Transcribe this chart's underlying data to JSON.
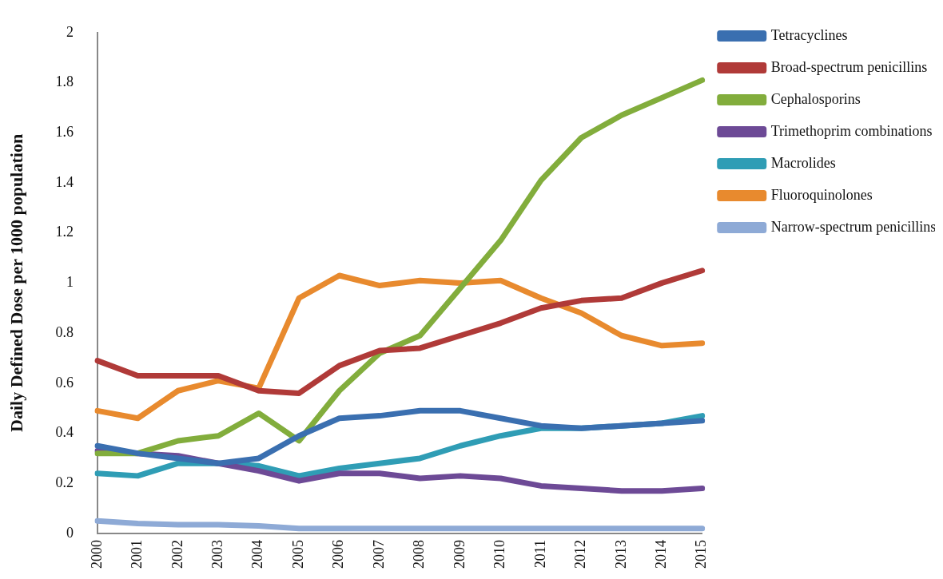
{
  "chart_data": {
    "type": "line",
    "ylabel": "Daily Defined Dose per 1000 population",
    "categories": [
      "2000",
      "2001",
      "2002",
      "2003",
      "2004",
      "2005",
      "2006",
      "2007",
      "2008",
      "2009",
      "2010",
      "2011",
      "2012",
      "2013",
      "2014",
      "2015"
    ],
    "series": [
      {
        "name": "Tetracyclines",
        "color": "#3a6fb0",
        "values": [
          0.35,
          0.32,
          0.3,
          0.28,
          0.3,
          0.39,
          0.46,
          0.47,
          0.49,
          0.49,
          0.46,
          0.43,
          0.42,
          0.43,
          0.44,
          0.45
        ]
      },
      {
        "name": "Broad-spectrum penicillins",
        "color": "#b03a38",
        "values": [
          0.69,
          0.63,
          0.63,
          0.63,
          0.57,
          0.56,
          0.67,
          0.73,
          0.74,
          0.79,
          0.84,
          0.9,
          0.93,
          0.94,
          1.0,
          1.05
        ]
      },
      {
        "name": "Cephalosporins",
        "color": "#82ad3c",
        "values": [
          0.32,
          0.32,
          0.37,
          0.39,
          0.48,
          0.37,
          0.57,
          0.72,
          0.79,
          0.98,
          1.17,
          1.41,
          1.58,
          1.67,
          1.74,
          1.81
        ]
      },
      {
        "name": "Trimethoprim combinations",
        "color": "#6d4a96",
        "values": [
          0.33,
          0.32,
          0.31,
          0.28,
          0.25,
          0.21,
          0.24,
          0.24,
          0.22,
          0.23,
          0.22,
          0.19,
          0.18,
          0.17,
          0.17,
          0.18
        ]
      },
      {
        "name": "Macrolides",
        "color": "#2f9db5",
        "values": [
          0.24,
          0.23,
          0.28,
          0.28,
          0.27,
          0.23,
          0.26,
          0.28,
          0.3,
          0.35,
          0.39,
          0.42,
          0.42,
          0.43,
          0.44,
          0.47
        ]
      },
      {
        "name": "Fluoroquinolones",
        "color": "#e88a2e",
        "values": [
          0.49,
          0.46,
          0.57,
          0.61,
          0.58,
          0.94,
          1.03,
          0.99,
          1.01,
          1.0,
          1.01,
          0.94,
          0.88,
          0.79,
          0.75,
          0.76
        ]
      },
      {
        "name": "Narrow-spectrum penicillins",
        "color": "#8eaad6",
        "values": [
          0.05,
          0.04,
          0.035,
          0.035,
          0.03,
          0.02,
          0.02,
          0.02,
          0.02,
          0.02,
          0.02,
          0.02,
          0.02,
          0.02,
          0.02,
          0.02
        ]
      }
    ],
    "ylim": [
      0,
      2
    ],
    "yticks": [
      0,
      0.2,
      0.4,
      0.6,
      0.8,
      1,
      1.2,
      1.4,
      1.6,
      1.8,
      2
    ],
    "grid": false,
    "legend": "right",
    "marker": "none",
    "line_style": "solid"
  }
}
